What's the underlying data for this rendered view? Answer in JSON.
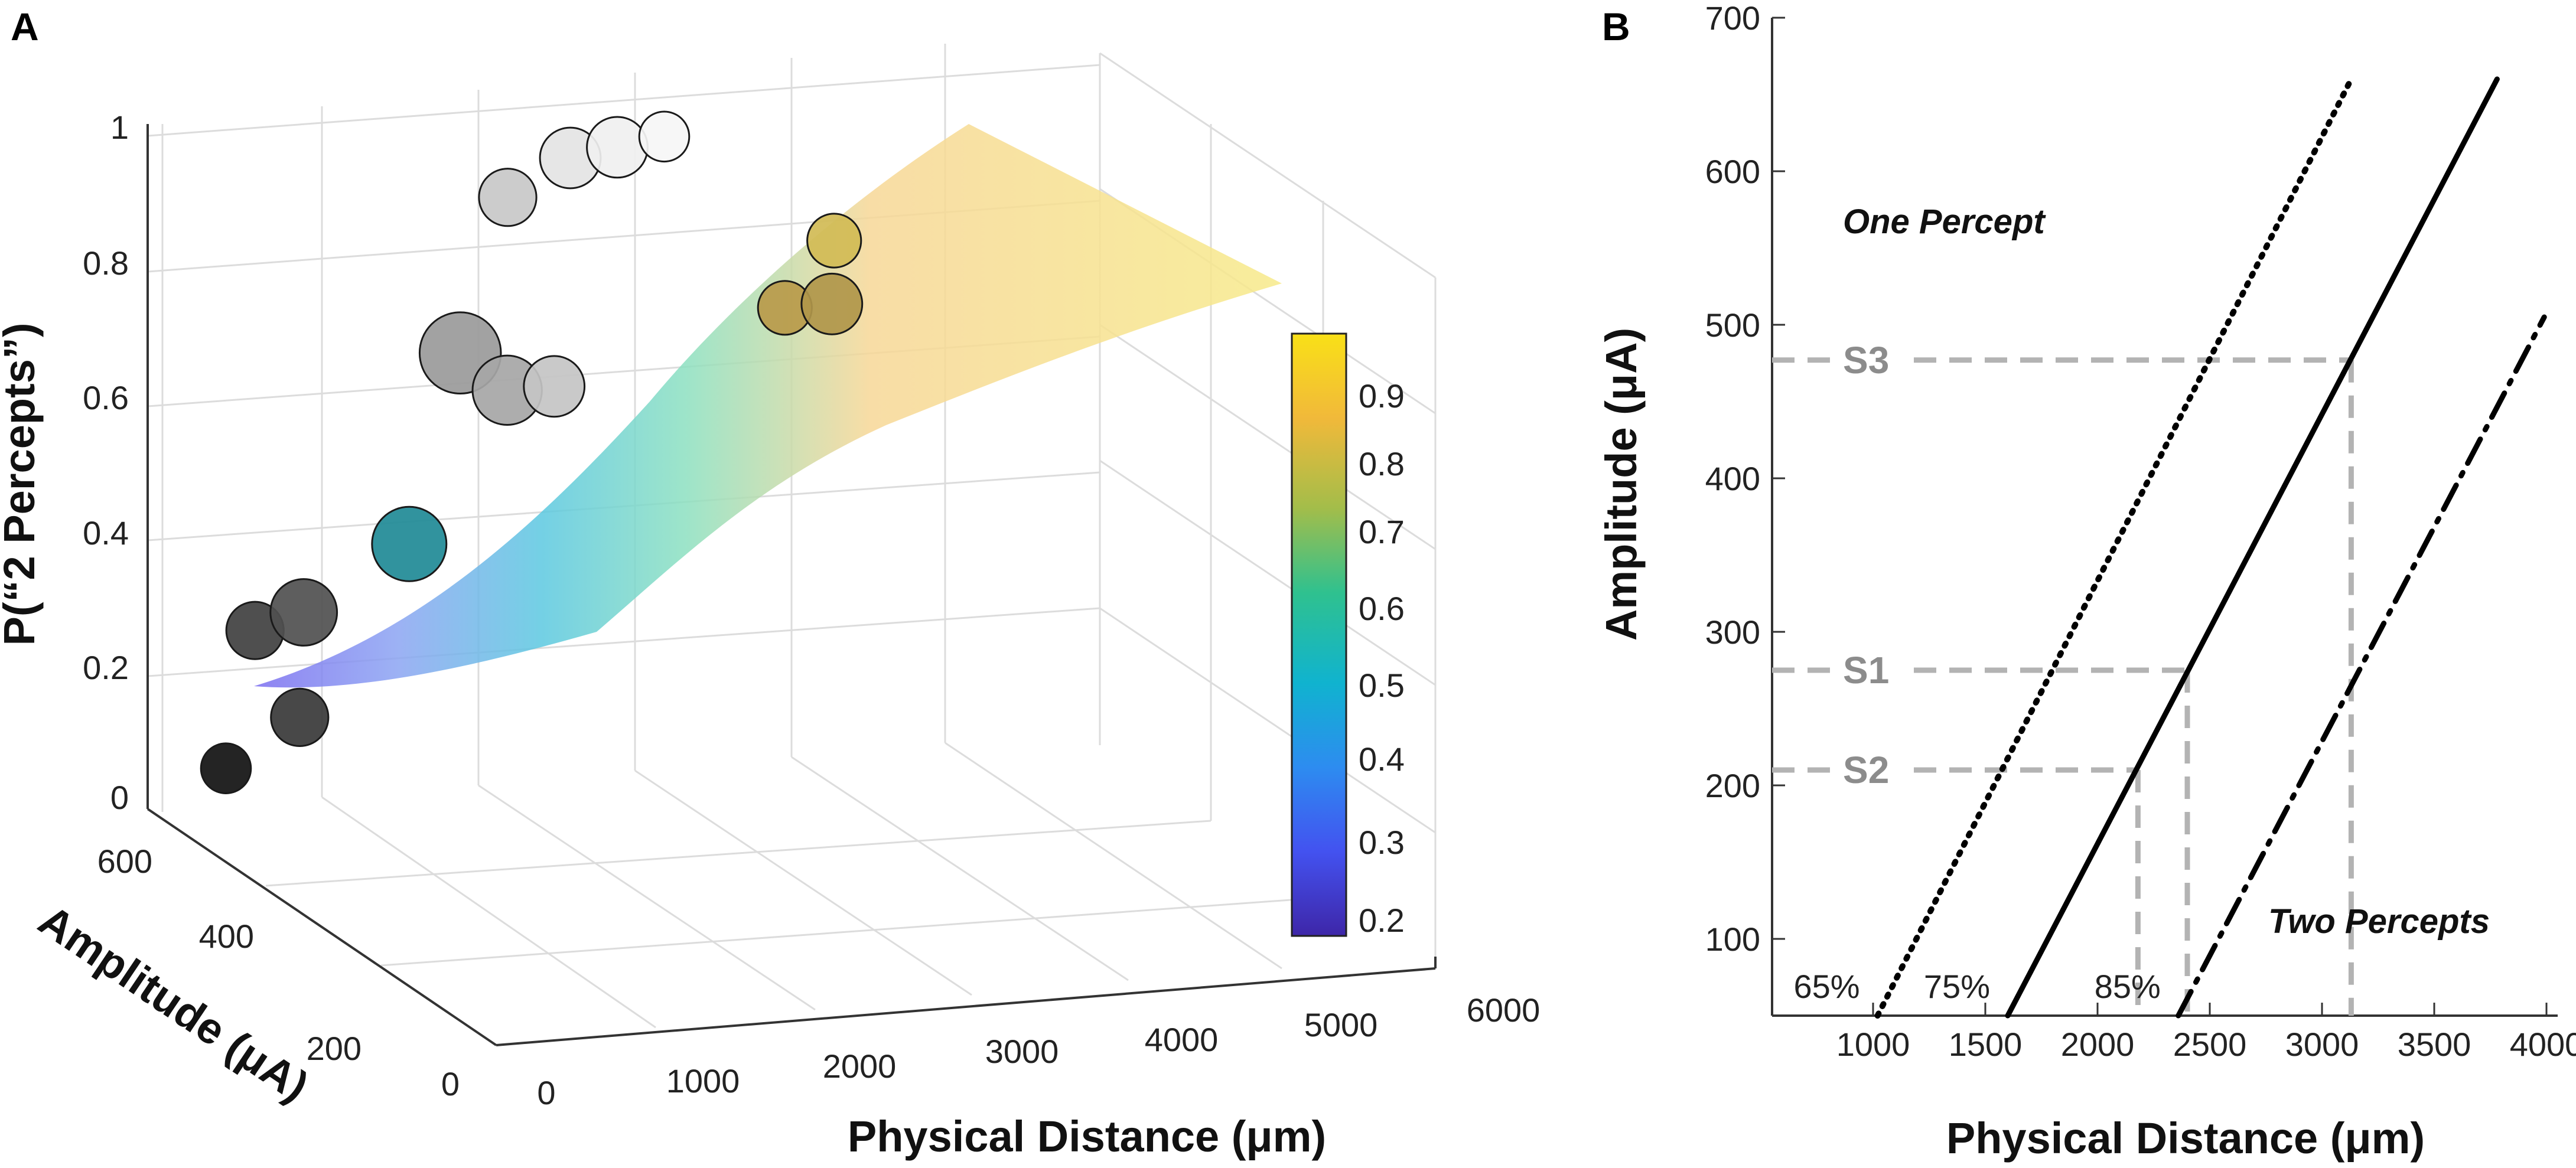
{
  "chart_data": [
    {
      "panel": "A",
      "type": "scatter",
      "subtype": "3d-scatter-with-fitted-surface",
      "title": "",
      "zlabel": "P(“2 Percepts”)",
      "ylabel": "Amplitude (μA)",
      "xlabel": "Physical Distance (μm)",
      "xlim": [
        0,
        6000
      ],
      "ylim": [
        0,
        600
      ],
      "zlim": [
        0,
        1
      ],
      "x_ticks": [
        "0",
        "1000",
        "2000",
        "3000",
        "4000",
        "5000",
        "6000"
      ],
      "y_ticks": [
        "0",
        "200",
        "400",
        "600"
      ],
      "z_ticks": [
        "0",
        "0.2",
        "0.4",
        "0.6",
        "0.8",
        "1"
      ],
      "colorbar": {
        "ticks": [
          "0.2",
          "0.3",
          "0.4",
          "0.5",
          "0.6",
          "0.7",
          "0.8",
          "0.9"
        ],
        "range": [
          0.15,
          0.98
        ],
        "colors": [
          "#3e26a8",
          "#4352f0",
          "#2d8cf0",
          "#10b3cf",
          "#2fc18f",
          "#a3bd4a",
          "#f1b93a",
          "#f9e017"
        ]
      },
      "surface_colors": {
        "low": "#7b6df0",
        "mid": "#56d6cf",
        "high": "#f7e27a"
      },
      "points": [
        {
          "x": 500,
          "y": 600,
          "p": 0.05,
          "n": 8,
          "color": "#111111"
        },
        {
          "x": 600,
          "y": 500,
          "p": 0.18,
          "n": 12,
          "color": "#383838"
        },
        {
          "x": 500,
          "y": 550,
          "p": 0.28,
          "n": 12,
          "color": "#404040"
        },
        {
          "x": 700,
          "y": 520,
          "p": 0.32,
          "n": 18,
          "color": "#505050"
        },
        {
          "x": 1300,
          "y": 500,
          "p": 0.42,
          "n": 24,
          "color": "#1f8a96"
        },
        {
          "x": 1700,
          "y": 520,
          "p": 0.68,
          "n": 30,
          "color": "#9a9a9a"
        },
        {
          "x": 2000,
          "y": 520,
          "p": 0.62,
          "n": 20,
          "color": "#a6a6a6"
        },
        {
          "x": 2300,
          "y": 520,
          "p": 0.62,
          "n": 14,
          "color": "#c4c4c4"
        },
        {
          "x": 2300,
          "y": 600,
          "p": 0.85,
          "n": 12,
          "color": "#c8c8c8"
        },
        {
          "x": 2700,
          "y": 600,
          "p": 0.9,
          "n": 14,
          "color": "#e4e4e4"
        },
        {
          "x": 3000,
          "y": 600,
          "p": 0.91,
          "n": 14,
          "color": "#f0f0f0"
        },
        {
          "x": 3300,
          "y": 600,
          "p": 0.92,
          "n": 8,
          "color": "#f6f6f6"
        },
        {
          "x": 3700,
          "y": 500,
          "p": 0.72,
          "n": 10,
          "color": "#b99a4a"
        },
        {
          "x": 4000,
          "y": 500,
          "p": 0.72,
          "n": 14,
          "color": "#b0964a"
        },
        {
          "x": 4200,
          "y": 550,
          "p": 0.78,
          "n": 10,
          "color": "#d1bb55"
        }
      ]
    },
    {
      "panel": "B",
      "type": "line",
      "title": "",
      "xlabel": "Physical Distance (μm)",
      "ylabel": "Amplitude (μA)",
      "xlim": [
        550,
        4050
      ],
      "ylim": [
        50,
        700
      ],
      "x_ticks": [
        1000,
        1500,
        2000,
        2500,
        3000,
        3500,
        4000
      ],
      "y_ticks": [
        100,
        200,
        300,
        400,
        500,
        600,
        700
      ],
      "x_tick_labels": [
        "1000",
        "1500",
        "2000",
        "2500",
        "3000",
        "3500",
        "4000"
      ],
      "y_tick_labels": [
        "100",
        "200",
        "300",
        "400",
        "500",
        "600",
        "700"
      ],
      "series": [
        {
          "name": "65%",
          "style": "dotted",
          "x": [
            1020,
            3130
          ],
          "y": [
            50,
            660
          ]
        },
        {
          "name": "75%",
          "style": "solid",
          "x": [
            1600,
            3780
          ],
          "y": [
            50,
            660
          ]
        },
        {
          "name": "85%",
          "style": "dashdot",
          "x": [
            2360,
            3990
          ],
          "y": [
            50,
            505
          ]
        }
      ],
      "stimuli": [
        {
          "name": "S1",
          "x": 2400,
          "y": 275
        },
        {
          "name": "S2",
          "x": 2180,
          "y": 210
        },
        {
          "name": "S3",
          "x": 3130,
          "y": 477
        }
      ],
      "annotations": {
        "one_percept": "One Percept",
        "two_percepts": "Two Percepts"
      }
    }
  ],
  "panels": {
    "a_letter": "A",
    "b_letter": "B"
  }
}
